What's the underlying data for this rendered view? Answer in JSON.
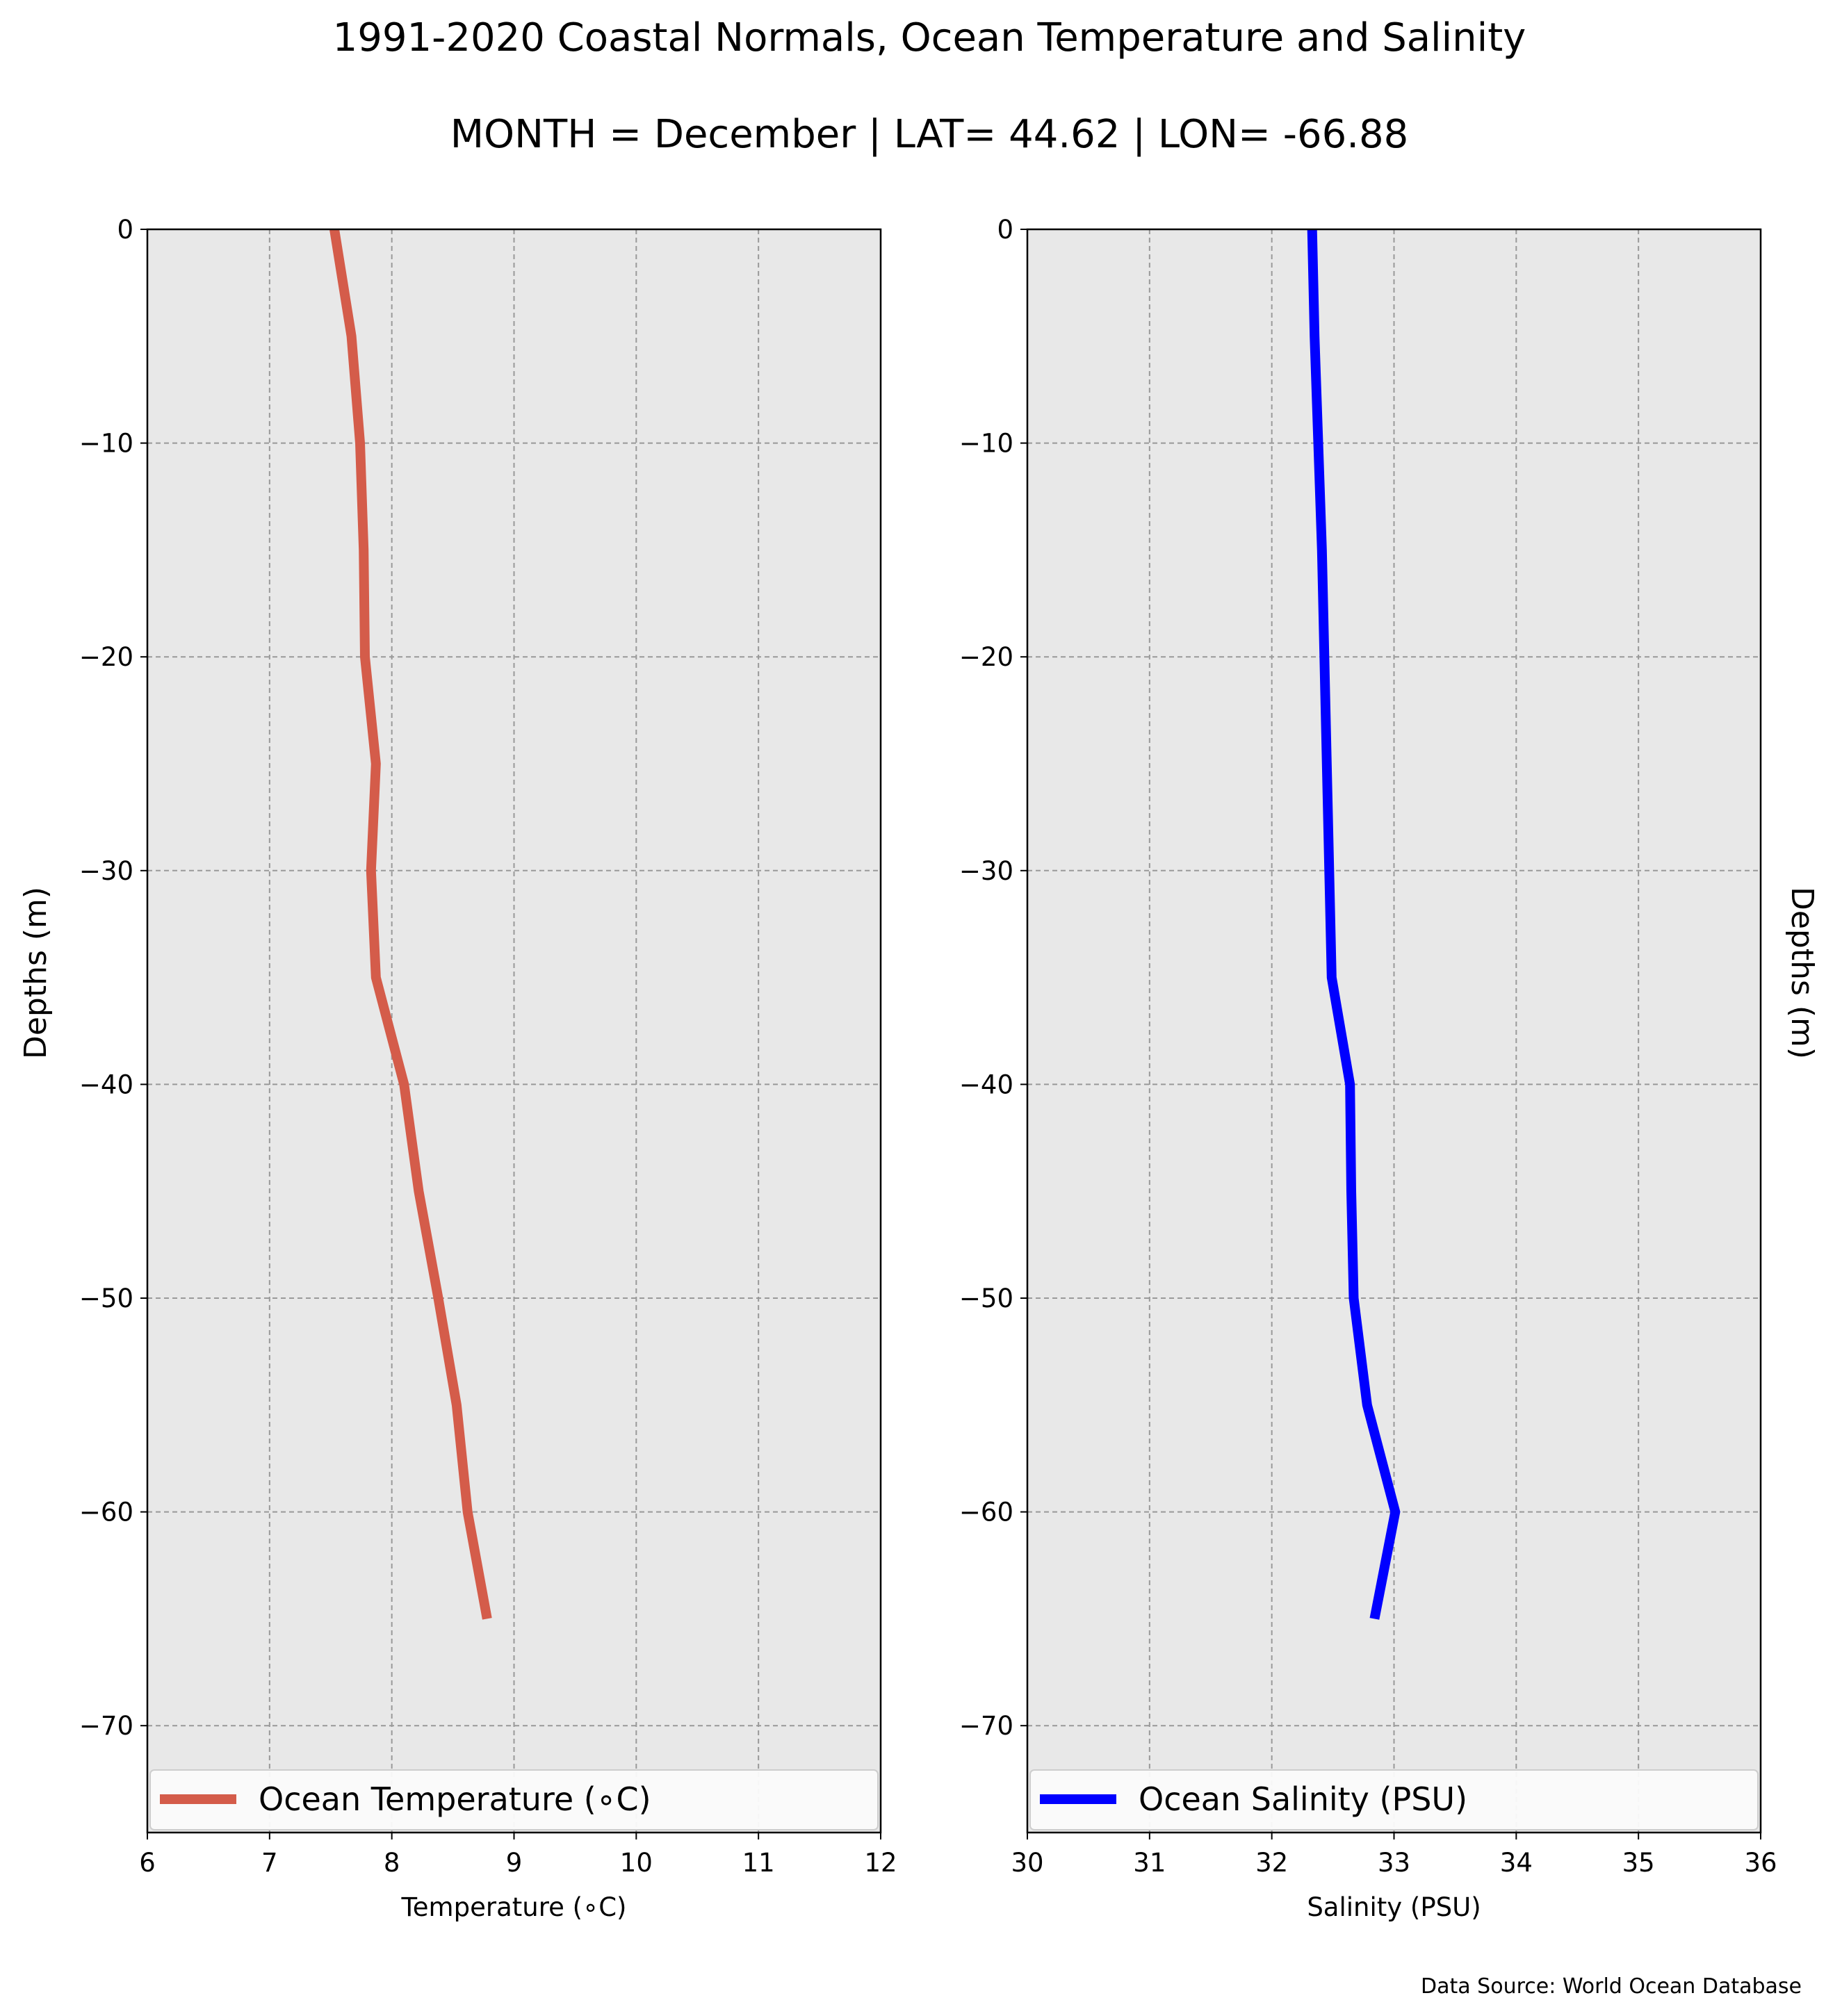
{
  "figure": {
    "title_line1": "1991-2020 Coastal Normals, Ocean Temperature and Salinity",
    "title_line2": "MONTH = December | LAT= 44.62 | LON= -66.88",
    "left_ylabel": "Depths (m)",
    "right_ylabel": "Depths (m)",
    "source": "Data Source: World Ocean Database",
    "colors": {
      "panel_background": "#e8e8e8",
      "grid": "#999999",
      "temperature_line": "#d45c4a",
      "salinity_line": "#0000ff"
    }
  },
  "chart_data": [
    {
      "type": "line",
      "xlabel": "Temperature ($^\\circ$C)",
      "xlabel_display": "Temperature (∘C)",
      "ylabel": "Depths (m)",
      "xlim": [
        6,
        12
      ],
      "ylim": [
        -75,
        0
      ],
      "xticks": [
        6,
        7,
        8,
        9,
        10,
        11,
        12
      ],
      "yticks": [
        0,
        -10,
        -20,
        -30,
        -40,
        -50,
        -60,
        -70
      ],
      "xtick_labels": [
        "6",
        "7",
        "8",
        "9",
        "10",
        "11",
        "12"
      ],
      "ytick_labels": [
        "0",
        "−10",
        "−20",
        "−30",
        "−40",
        "−50",
        "−60",
        "−70"
      ],
      "grid": true,
      "legend": "bottom",
      "series": [
        {
          "name": "Ocean Temperature (∘C)",
          "color": "#d45c4a",
          "x": [
            7.53,
            7.67,
            7.74,
            7.77,
            7.78,
            7.87,
            7.83,
            7.87,
            8.1,
            8.22,
            8.38,
            8.53,
            8.62,
            8.78
          ],
          "y": [
            0,
            -5,
            -10,
            -15,
            -20,
            -25,
            -30,
            -35,
            -40,
            -45,
            -50,
            -55,
            -60,
            -65
          ]
        }
      ]
    },
    {
      "type": "line",
      "xlabel": "Salinity (PSU)",
      "ylabel": "Depths (m)",
      "xlim": [
        30,
        36
      ],
      "ylim": [
        -75,
        0
      ],
      "xticks": [
        30,
        31,
        32,
        33,
        34,
        35,
        36
      ],
      "yticks": [
        0,
        -10,
        -20,
        -30,
        -40,
        -50,
        -60,
        -70
      ],
      "xtick_labels": [
        "30",
        "31",
        "32",
        "33",
        "34",
        "35",
        "36"
      ],
      "ytick_labels": [
        "0",
        "−10",
        "−20",
        "−30",
        "−40",
        "−50",
        "−60",
        "−70"
      ],
      "grid": true,
      "legend": "bottom",
      "series": [
        {
          "name": "Ocean Salinity (PSU)",
          "color": "#0000ff",
          "x": [
            32.33,
            32.35,
            32.38,
            32.41,
            32.43,
            32.45,
            32.47,
            32.49,
            32.64,
            32.65,
            32.67,
            32.78,
            33.01,
            32.84
          ],
          "y": [
            0,
            -5,
            -10,
            -15,
            -20,
            -25,
            -30,
            -35,
            -40,
            -45,
            -50,
            -55,
            -60,
            -65
          ]
        }
      ]
    }
  ]
}
